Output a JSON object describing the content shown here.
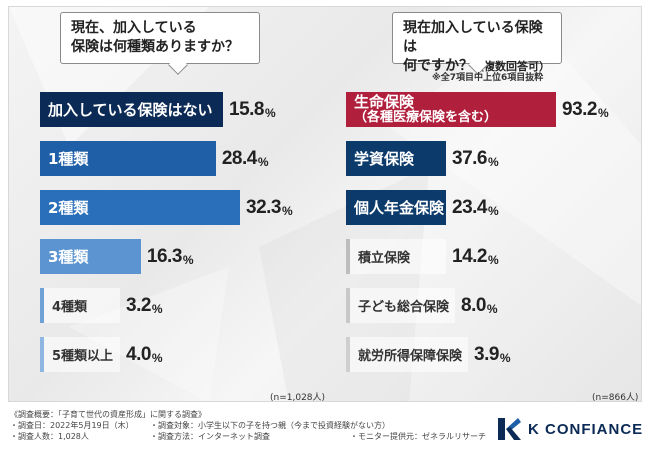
{
  "left": {
    "question_line1": "現在、加入している",
    "question_line2": "保険は何種類ありますか？",
    "n_note": "(n=1,028人)"
  },
  "right": {
    "question_line1": "現在加入している保険は",
    "question_line2": "何ですか？",
    "question_paren": "（複数回答可）",
    "subnote": "※全7項目中上位6項目抜粋",
    "n_note": "(n=866人)"
  },
  "chart_data": [
    {
      "type": "bar",
      "title": "現在、加入している保険は何種類ありますか？",
      "categories": [
        "加入している保険はない",
        "1種類",
        "2種類",
        "3種類",
        "4種類",
        "5種類以上"
      ],
      "values": [
        15.8,
        28.4,
        32.3,
        16.3,
        3.2,
        4.0
      ],
      "value_labels": [
        "15.8",
        "28.4",
        "32.3",
        "16.3",
        "3.2",
        "4.0"
      ],
      "unit": "%",
      "colors": [
        "#0b2a55",
        "#1f5fa8",
        "#2a6fba",
        "#5b94d0",
        "#8fb6e0",
        "#a9c8e8"
      ],
      "text_dark": [
        true,
        true,
        true,
        true,
        false,
        false
      ]
    },
    {
      "type": "bar",
      "title": "現在加入している保険は何ですか？（複数回答可）",
      "categories": [
        "生命保険",
        "学資保険",
        "個人年金保険",
        "積立保険",
        "子ども総合保険",
        "就労所得保障保険"
      ],
      "category_sub": [
        "（各種医療保険を含む）",
        "",
        "",
        "",
        "",
        ""
      ],
      "values": [
        93.2,
        37.6,
        23.4,
        14.2,
        8.0,
        3.9
      ],
      "value_labels": [
        "93.2",
        "37.6",
        "23.4",
        "14.2",
        "8.0",
        "3.9"
      ],
      "unit": "%",
      "colors": [
        "#b0203d",
        "#0b3a6b",
        "#0b3a6b",
        "#c8c8c8",
        "#d4d4d4",
        "#d8d8d8"
      ],
      "text_dark": [
        true,
        true,
        true,
        false,
        false,
        false
      ]
    }
  ],
  "footer": {
    "title": "《調査概要：「子育て世代の資産形成」に関する調査》",
    "date": "・調査日：2022年5月19日（木）",
    "target": "・調査対象：小学生以下の子を持つ親（今まで投資経験がない方）",
    "count": "・調査人数：1,028人",
    "method": "・調査方法：インターネット調査",
    "provider": "・モニター提供元：ゼネラルリサーチ"
  },
  "logo": {
    "text": "K CONFIANCE",
    "color": "#0b2a55"
  }
}
